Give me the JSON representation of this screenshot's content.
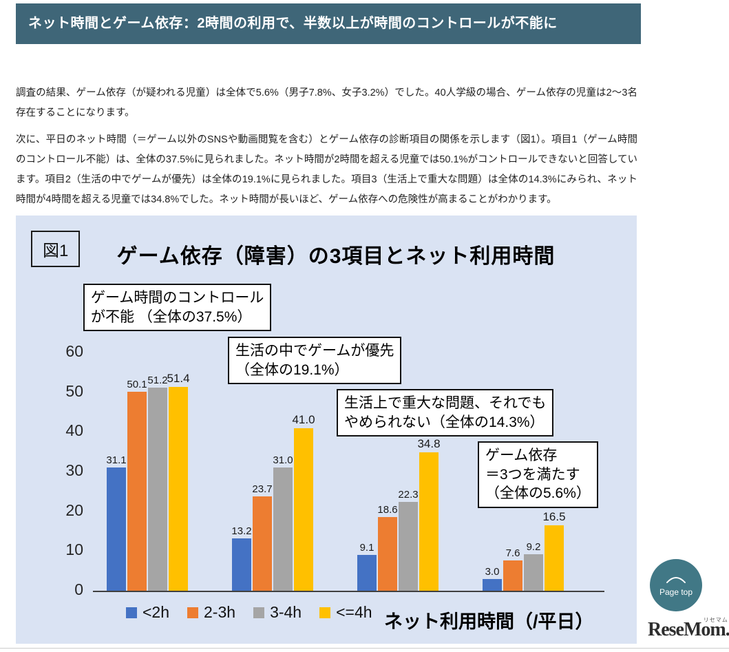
{
  "article": {
    "title": "ネット時間とゲーム依存：2時間の利用で、半数以上が時間のコントロールが不能に",
    "paragraphs": [
      "調査の結果、ゲーム依存（が疑われる児童）は全体で5.6%（男子7.8%、女子3.2%）でした。40人学級の場合、ゲーム依存の児童は2～3名存在することになります。",
      "次に、平日のネット時間（＝ゲーム以外のSNSや動画閲覧を含む）とゲーム依存の診断項目の関係を示します（図1）。項目1（ゲーム時間のコントロール不能）は、全体の37.5%に見られました。ネット時間が2時間を超える児童では50.1%がコントロールできないと回答しています。項目2（生活の中でゲームが優先）は全体の19.1%に見られました。項目3（生活上で重大な問題）は全体の14.3%にみられ、ネット時間が4時間を超える児童では34.8%でした。ネット時間が長いほど、ゲーム依存への危険性が高まることがわかります。"
    ]
  },
  "figure": {
    "label": "図1",
    "title": "ゲーム依存（障害）の3項目とネット利用時間",
    "annotations": [
      "ゲーム時間のコントロール\nが不能 （全体の37.5%）",
      "生活の中でゲームが優先\n（全体の19.1%）",
      "生活上で重大な問題、それでも\nやめられない（全体の14.3%）",
      "ゲーム依存\n＝3つを満たす\n（全体の5.6%）"
    ],
    "xlabel": "ネット利用時間（/平日）"
  },
  "chart_data": {
    "type": "bar",
    "title": "ゲーム依存（障害）の3項目とネット利用時間",
    "categories": [
      "ゲーム時間のコントロールが不能（全体の37.5%）",
      "生活の中でゲームが優先（全体の19.1%）",
      "生活上で重大な問題、それでもやめられない（全体の14.3%）",
      "ゲーム依存＝3つを満たす（全体の5.6%）"
    ],
    "series": [
      {
        "name": "<2h",
        "color": "#4472c4",
        "values": [
          31.1,
          13.2,
          9.1,
          3.0
        ]
      },
      {
        "name": "2-3h",
        "color": "#ed7d31",
        "values": [
          50.1,
          23.7,
          18.6,
          7.6
        ]
      },
      {
        "name": "3-4h",
        "color": "#a5a5a5",
        "values": [
          51.2,
          31.0,
          22.3,
          9.2
        ]
      },
      {
        "name": "<=4h",
        "color": "#ffc000",
        "values": [
          51.4,
          41.0,
          34.8,
          16.5
        ]
      }
    ],
    "xlabel": "ネット利用時間（/平日）",
    "ylabel": "",
    "ylim": [
      0,
      60
    ],
    "yticks": [
      0,
      10,
      20,
      30,
      40,
      50,
      60
    ],
    "grid": false,
    "legend_position": "bottom",
    "plot_background": "#dae3f3"
  },
  "page_top": {
    "label": "Page top"
  },
  "logo": {
    "text": "ReseMom.",
    "ruby": "リセマム"
  }
}
